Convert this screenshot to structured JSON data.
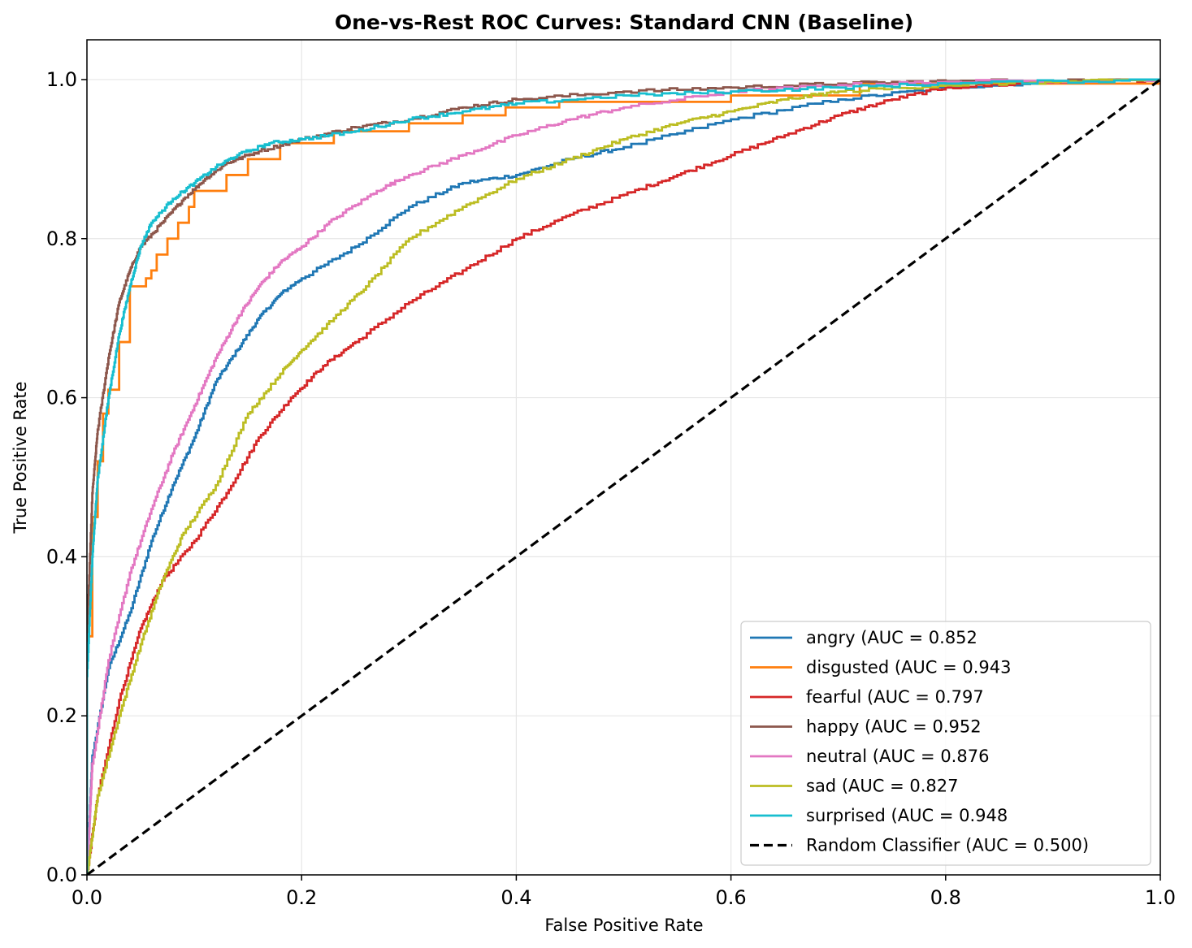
{
  "chart_data": {
    "type": "line",
    "title": "One-vs-Rest ROC Curves: Standard CNN (Baseline)",
    "xlabel": "False Positive Rate",
    "ylabel": "True Positive Rate",
    "xlim": [
      0.0,
      1.0
    ],
    "ylim": [
      0.0,
      1.05
    ],
    "xticks": [
      "0.0",
      "0.2",
      "0.4",
      "0.6",
      "0.8",
      "1.0"
    ],
    "yticks": [
      "0.0",
      "0.2",
      "0.4",
      "0.6",
      "0.8",
      "1.0"
    ],
    "grid": true,
    "legend_position": "lower-right",
    "series": [
      {
        "name": "angry",
        "label": "angry (AUC = 0.852",
        "auc": 0.852,
        "color": "#1f77b4",
        "points": [
          [
            0,
            0
          ],
          [
            0.005,
            0.15
          ],
          [
            0.02,
            0.26
          ],
          [
            0.04,
            0.33
          ],
          [
            0.06,
            0.42
          ],
          [
            0.08,
            0.49
          ],
          [
            0.1,
            0.55
          ],
          [
            0.12,
            0.62
          ],
          [
            0.14,
            0.66
          ],
          [
            0.16,
            0.7
          ],
          [
            0.18,
            0.73
          ],
          [
            0.2,
            0.75
          ],
          [
            0.25,
            0.79
          ],
          [
            0.3,
            0.84
          ],
          [
            0.35,
            0.87
          ],
          [
            0.4,
            0.88
          ],
          [
            0.45,
            0.9
          ],
          [
            0.5,
            0.915
          ],
          [
            0.6,
            0.95
          ],
          [
            0.7,
            0.975
          ],
          [
            0.8,
            0.99
          ],
          [
            0.9,
            0.997
          ],
          [
            1.0,
            1.0
          ]
        ]
      },
      {
        "name": "disgusted",
        "label": "disgusted (AUC = 0.943",
        "auc": 0.943,
        "color": "#ff7f0e",
        "step": true,
        "points": [
          [
            0,
            0
          ],
          [
            0,
            0.3
          ],
          [
            0.005,
            0.45
          ],
          [
            0.01,
            0.52
          ],
          [
            0.015,
            0.58
          ],
          [
            0.02,
            0.61
          ],
          [
            0.03,
            0.67
          ],
          [
            0.04,
            0.74
          ],
          [
            0.055,
            0.75
          ],
          [
            0.06,
            0.76
          ],
          [
            0.065,
            0.78
          ],
          [
            0.075,
            0.8
          ],
          [
            0.085,
            0.82
          ],
          [
            0.095,
            0.84
          ],
          [
            0.1,
            0.86
          ],
          [
            0.13,
            0.88
          ],
          [
            0.15,
            0.9
          ],
          [
            0.18,
            0.92
          ],
          [
            0.23,
            0.935
          ],
          [
            0.3,
            0.945
          ],
          [
            0.35,
            0.955
          ],
          [
            0.39,
            0.965
          ],
          [
            0.44,
            0.972
          ],
          [
            0.6,
            0.98
          ],
          [
            0.72,
            0.995
          ],
          [
            1.0,
            1.0
          ]
        ]
      },
      {
        "name": "fearful",
        "label": "fearful (AUC = 0.797",
        "auc": 0.797,
        "color": "#d62728",
        "points": [
          [
            0,
            0
          ],
          [
            0.01,
            0.1
          ],
          [
            0.03,
            0.22
          ],
          [
            0.05,
            0.31
          ],
          [
            0.07,
            0.37
          ],
          [
            0.1,
            0.42
          ],
          [
            0.13,
            0.48
          ],
          [
            0.16,
            0.55
          ],
          [
            0.19,
            0.6
          ],
          [
            0.22,
            0.64
          ],
          [
            0.25,
            0.67
          ],
          [
            0.3,
            0.72
          ],
          [
            0.35,
            0.76
          ],
          [
            0.4,
            0.8
          ],
          [
            0.45,
            0.83
          ],
          [
            0.5,
            0.855
          ],
          [
            0.55,
            0.88
          ],
          [
            0.6,
            0.905
          ],
          [
            0.65,
            0.93
          ],
          [
            0.7,
            0.955
          ],
          [
            0.75,
            0.975
          ],
          [
            0.8,
            0.99
          ],
          [
            0.9,
            0.997
          ],
          [
            1.0,
            1.0
          ]
        ]
      },
      {
        "name": "happy",
        "label": "happy (AUC = 0.952",
        "auc": 0.952,
        "color": "#8c564b",
        "points": [
          [
            0,
            0
          ],
          [
            0,
            0.3
          ],
          [
            0.005,
            0.48
          ],
          [
            0.01,
            0.56
          ],
          [
            0.02,
            0.65
          ],
          [
            0.03,
            0.72
          ],
          [
            0.04,
            0.76
          ],
          [
            0.05,
            0.79
          ],
          [
            0.07,
            0.82
          ],
          [
            0.09,
            0.85
          ],
          [
            0.11,
            0.875
          ],
          [
            0.13,
            0.895
          ],
          [
            0.16,
            0.91
          ],
          [
            0.2,
            0.925
          ],
          [
            0.25,
            0.94
          ],
          [
            0.3,
            0.95
          ],
          [
            0.35,
            0.965
          ],
          [
            0.4,
            0.975
          ],
          [
            0.5,
            0.985
          ],
          [
            0.6,
            0.99
          ],
          [
            0.7,
            0.995
          ],
          [
            0.8,
            0.998
          ],
          [
            1.0,
            1.0
          ]
        ]
      },
      {
        "name": "neutral",
        "label": "neutral (AUC = 0.876",
        "auc": 0.876,
        "color": "#e377c2",
        "points": [
          [
            0,
            0
          ],
          [
            0.005,
            0.14
          ],
          [
            0.02,
            0.27
          ],
          [
            0.04,
            0.38
          ],
          [
            0.06,
            0.46
          ],
          [
            0.08,
            0.53
          ],
          [
            0.1,
            0.59
          ],
          [
            0.12,
            0.65
          ],
          [
            0.14,
            0.7
          ],
          [
            0.16,
            0.74
          ],
          [
            0.18,
            0.77
          ],
          [
            0.2,
            0.79
          ],
          [
            0.23,
            0.825
          ],
          [
            0.27,
            0.86
          ],
          [
            0.3,
            0.88
          ],
          [
            0.35,
            0.905
          ],
          [
            0.4,
            0.93
          ],
          [
            0.45,
            0.95
          ],
          [
            0.5,
            0.965
          ],
          [
            0.6,
            0.985
          ],
          [
            0.7,
            0.993
          ],
          [
            0.8,
            0.997
          ],
          [
            1.0,
            1.0
          ]
        ]
      },
      {
        "name": "sad",
        "label": "sad (AUC = 0.827",
        "auc": 0.827,
        "color": "#bcbd22",
        "points": [
          [
            0,
            0
          ],
          [
            0.01,
            0.1
          ],
          [
            0.03,
            0.2
          ],
          [
            0.05,
            0.29
          ],
          [
            0.07,
            0.37
          ],
          [
            0.09,
            0.43
          ],
          [
            0.12,
            0.49
          ],
          [
            0.15,
            0.58
          ],
          [
            0.18,
            0.63
          ],
          [
            0.2,
            0.66
          ],
          [
            0.23,
            0.7
          ],
          [
            0.26,
            0.74
          ],
          [
            0.3,
            0.8
          ],
          [
            0.35,
            0.84
          ],
          [
            0.4,
            0.875
          ],
          [
            0.45,
            0.9
          ],
          [
            0.5,
            0.925
          ],
          [
            0.55,
            0.945
          ],
          [
            0.6,
            0.96
          ],
          [
            0.65,
            0.975
          ],
          [
            0.7,
            0.985
          ],
          [
            0.8,
            0.993
          ],
          [
            0.9,
            0.997
          ],
          [
            1.0,
            1.0
          ]
        ]
      },
      {
        "name": "surprised",
        "label": "surprised (AUC = 0.948",
        "auc": 0.948,
        "color": "#17becf",
        "points": [
          [
            0,
            0
          ],
          [
            0,
            0.25
          ],
          [
            0.005,
            0.4
          ],
          [
            0.01,
            0.5
          ],
          [
            0.02,
            0.6
          ],
          [
            0.03,
            0.68
          ],
          [
            0.04,
            0.74
          ],
          [
            0.05,
            0.79
          ],
          [
            0.06,
            0.82
          ],
          [
            0.08,
            0.85
          ],
          [
            0.1,
            0.87
          ],
          [
            0.12,
            0.89
          ],
          [
            0.14,
            0.905
          ],
          [
            0.17,
            0.92
          ],
          [
            0.2,
            0.925
          ],
          [
            0.25,
            0.935
          ],
          [
            0.3,
            0.95
          ],
          [
            0.35,
            0.96
          ],
          [
            0.4,
            0.97
          ],
          [
            0.5,
            0.98
          ],
          [
            0.6,
            0.985
          ],
          [
            0.7,
            0.99
          ],
          [
            0.8,
            0.995
          ],
          [
            1.0,
            1.0
          ]
        ]
      },
      {
        "name": "random",
        "label": "Random Classifier (AUC = 0.500)",
        "auc": 0.5,
        "color": "#000000",
        "dashed": true,
        "points": [
          [
            0,
            0
          ],
          [
            1,
            1
          ]
        ]
      }
    ]
  }
}
